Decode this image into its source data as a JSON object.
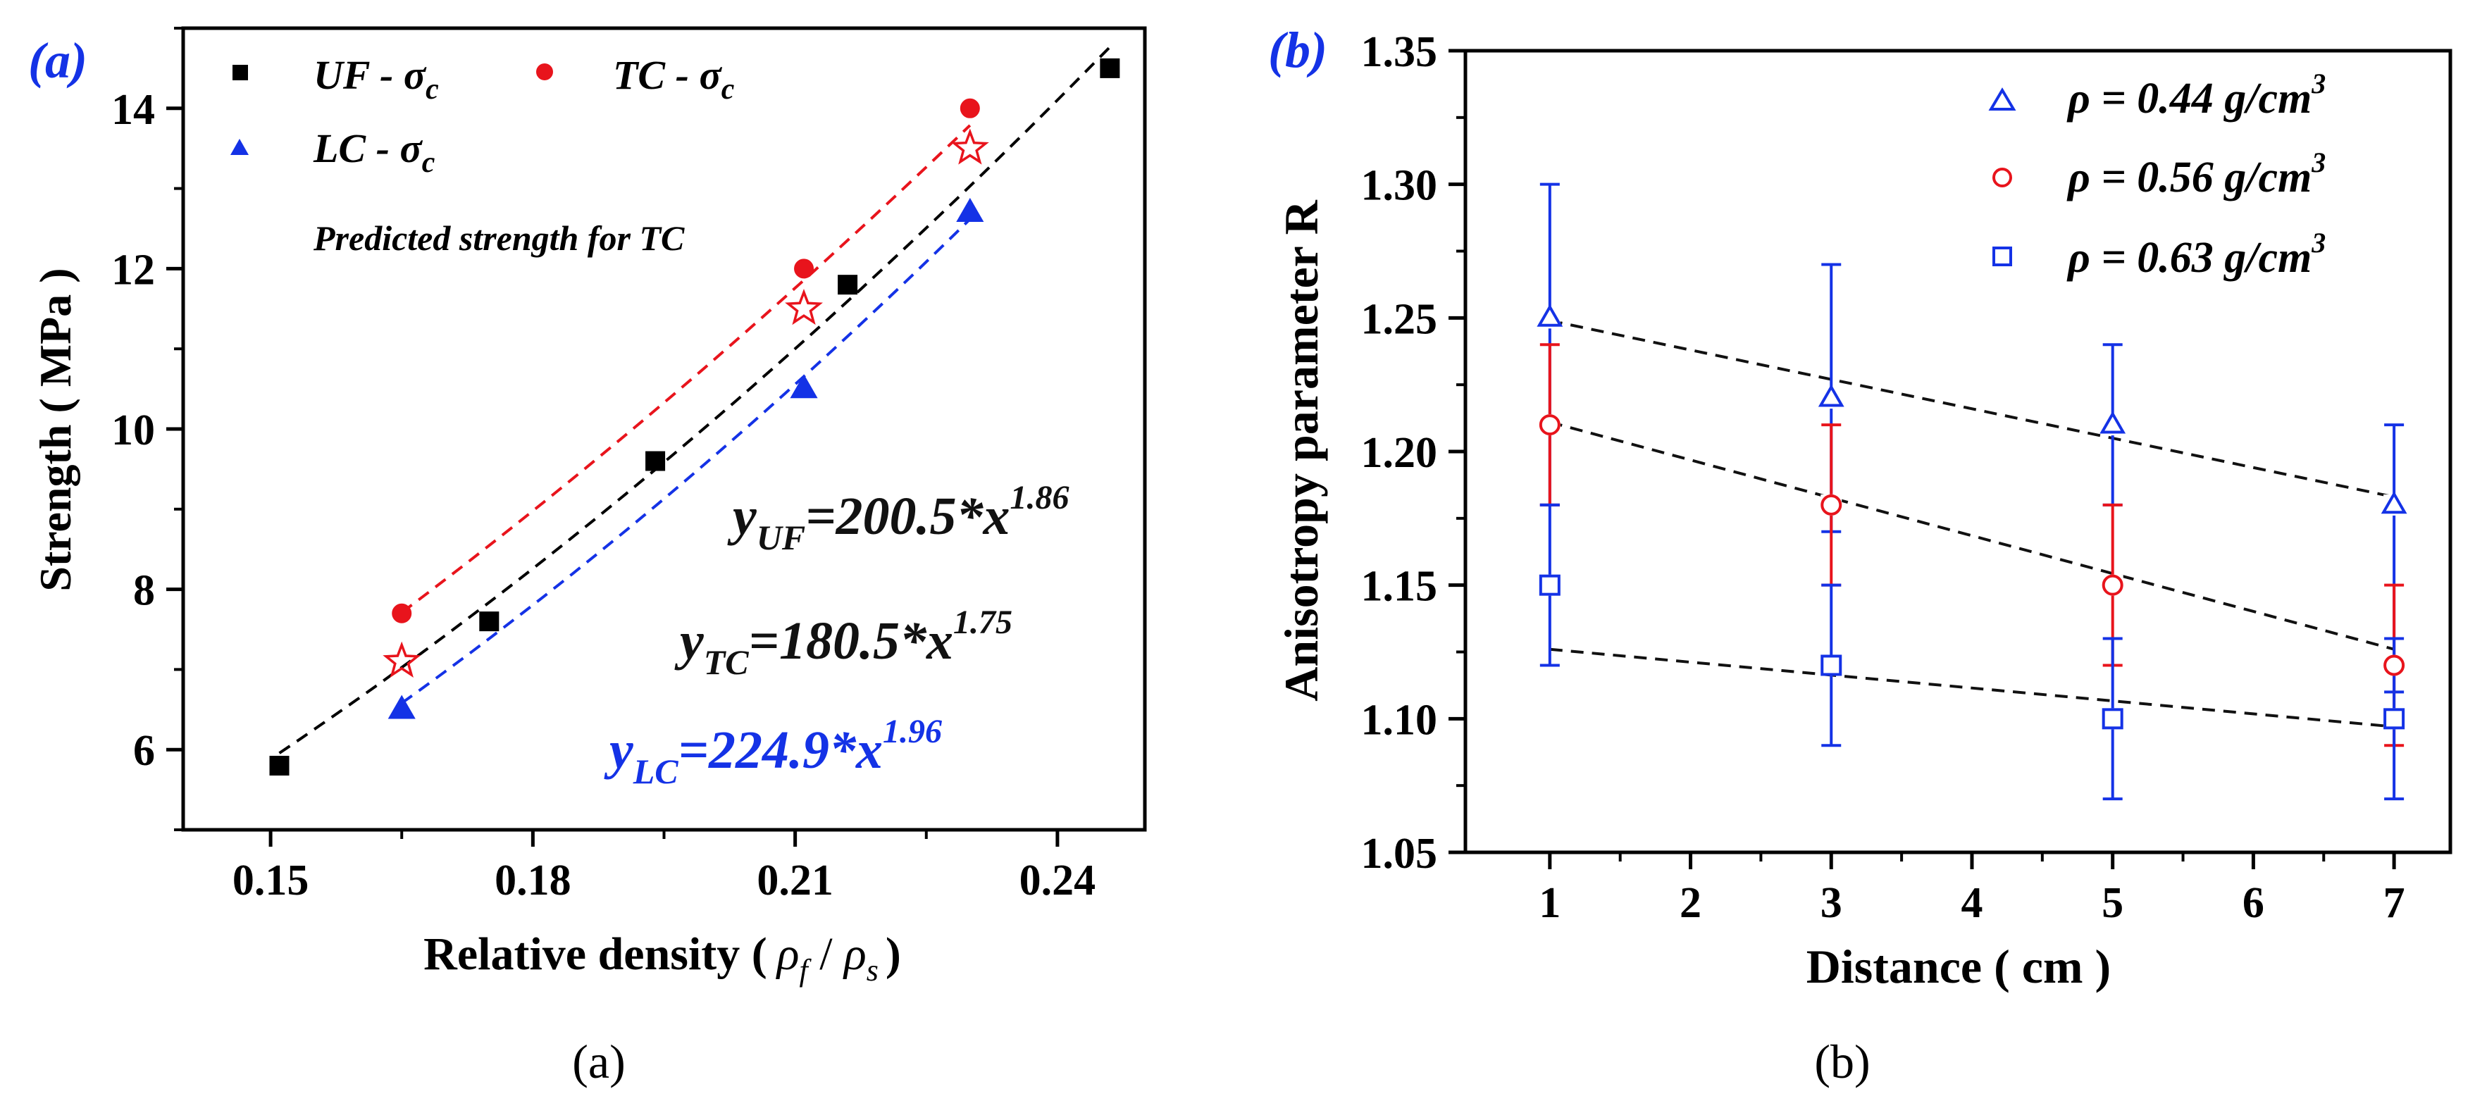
{
  "chart_data": [
    {
      "type": "scatter",
      "panel_tag": "(a)",
      "caption": "(a)",
      "xlabel": "Relative density (",
      "xlabel_rho": "ρ",
      "xlabel_sub_f": "f",
      "xlabel_slash": " / ",
      "xlabel_sub_s": "s",
      "xlabel_close": ")",
      "ylabel": "Strength ( MPa )",
      "xlim": [
        0.14,
        0.25
      ],
      "ylim": [
        5.0,
        15.0
      ],
      "xticks": [
        0.15,
        0.18,
        0.21,
        0.24
      ],
      "xtick_labels": [
        "0.15",
        "0.18",
        "0.21",
        "0.24"
      ],
      "yticks": [
        6,
        8,
        10,
        12,
        14
      ],
      "ytick_labels": [
        "6",
        "8",
        "10",
        "12",
        "14"
      ],
      "series": [
        {
          "name": "UF",
          "label_prefix": "UF - ",
          "label_sigma": "σ",
          "label_sub": "c",
          "marker": "square",
          "color": "#000000",
          "x": [
            0.151,
            0.175,
            0.194,
            0.216,
            0.246
          ],
          "y": [
            5.8,
            7.6,
            9.6,
            11.8,
            14.5
          ],
          "fit": {
            "coef": 200.5,
            "exp": 1.86,
            "x_range": [
              0.151,
              0.246
            ],
            "color": "#000000"
          }
        },
        {
          "name": "TC",
          "label_prefix": "TC - ",
          "label_sigma": "σ",
          "label_sub": "c",
          "marker": "circle",
          "color": "#e8141c",
          "x": [
            0.165,
            0.211,
            0.23
          ],
          "y": [
            7.7,
            12.0,
            14.0
          ],
          "fit": {
            "coef": 180.5,
            "exp": 1.75,
            "x_range": [
              0.165,
              0.23
            ],
            "color": "#e8141c"
          }
        },
        {
          "name": "LC",
          "label_prefix": "LC - ",
          "label_sigma": "σ",
          "label_sub": "c",
          "marker": "triangle",
          "color": "#1432e6",
          "x": [
            0.165,
            0.211,
            0.23
          ],
          "y": [
            6.5,
            10.5,
            12.7
          ],
          "fit": {
            "coef": 224.9,
            "exp": 1.96,
            "x_range": [
              0.165,
              0.23
            ],
            "color": "#1432e6"
          }
        },
        {
          "name": "Predicted strength for TC",
          "marker": "star-open",
          "color": "#e8141c",
          "x": [
            0.165,
            0.211,
            0.23
          ],
          "y": [
            7.1,
            11.5,
            13.5
          ]
        }
      ],
      "equations": [
        {
          "y": "y",
          "sub": "UF",
          "body": "=200.5*x",
          "exp": "1.86",
          "color": "#111111"
        },
        {
          "y": "y",
          "sub": "TC",
          "body": "=180.5*x",
          "exp": "1.75",
          "color": "#111111"
        },
        {
          "y": "y",
          "sub": "LC",
          "body": "=224.9*x",
          "exp": "1.96",
          "color": "#1432e6"
        }
      ]
    },
    {
      "type": "scatter",
      "panel_tag": "(b)",
      "caption": "(b)",
      "xlabel": "Distance ( cm )",
      "ylabel": "Anisotropy parameter R",
      "xlim": [
        0.4,
        7.4
      ],
      "ylim": [
        1.05,
        1.35
      ],
      "xticks": [
        1,
        2,
        3,
        4,
        5,
        6,
        7
      ],
      "xtick_labels": [
        "1",
        "2",
        "3",
        "4",
        "5",
        "6",
        "7"
      ],
      "yticks": [
        1.05,
        1.1,
        1.15,
        1.2,
        1.25,
        1.3,
        1.35
      ],
      "ytick_labels": [
        "1.05",
        "1.10",
        "1.15",
        "1.20",
        "1.25",
        "1.30",
        "1.35"
      ],
      "series": [
        {
          "name": "0.44",
          "label_rho": "ρ = ",
          "label_value": "0.44",
          "label_unit": " g/cm",
          "label_exp": "3",
          "marker": "triangle-open",
          "color": "#1432e6",
          "x": [
            1,
            3,
            5,
            7
          ],
          "y": [
            1.25,
            1.22,
            1.21,
            1.18
          ],
          "err_low": [
            0.07,
            0.05,
            0.03,
            0.07
          ],
          "err_high": [
            0.05,
            0.05,
            0.03,
            0.03
          ],
          "err_color": "#1432e6",
          "fit": {
            "x": [
              1,
              7
            ],
            "y": [
              1.249,
              1.183
            ]
          }
        },
        {
          "name": "0.56",
          "label_rho": "ρ = ",
          "label_value": "0.56",
          "label_unit": " g/cm",
          "label_exp": "3",
          "marker": "circle-open",
          "color": "#e8141c",
          "x": [
            1,
            3,
            5,
            7
          ],
          "y": [
            1.21,
            1.18,
            1.15,
            1.12
          ],
          "err_low": [
            0.03,
            0.03,
            0.03,
            0.03
          ],
          "err_high": [
            0.03,
            0.03,
            0.03,
            0.03
          ],
          "err_color": "#e8141c",
          "fit": {
            "x": [
              1,
              7
            ],
            "y": [
              1.211,
              1.126
            ]
          }
        },
        {
          "name": "0.63",
          "label_rho": "ρ = ",
          "label_value": "0.63",
          "label_unit": " g/cm",
          "label_exp": "3",
          "marker": "square-open",
          "color": "#1432e6",
          "x": [
            1,
            3,
            5,
            7
          ],
          "y": [
            1.15,
            1.12,
            1.1,
            1.1
          ],
          "err_low": [
            0.03,
            0.03,
            0.03,
            0.03
          ],
          "err_high": [
            0.03,
            0.03,
            0.03,
            0.03
          ],
          "err_color": "#1432e6",
          "fit": {
            "x": [
              1,
              7
            ],
            "y": [
              1.126,
              1.097
            ]
          }
        }
      ]
    }
  ]
}
